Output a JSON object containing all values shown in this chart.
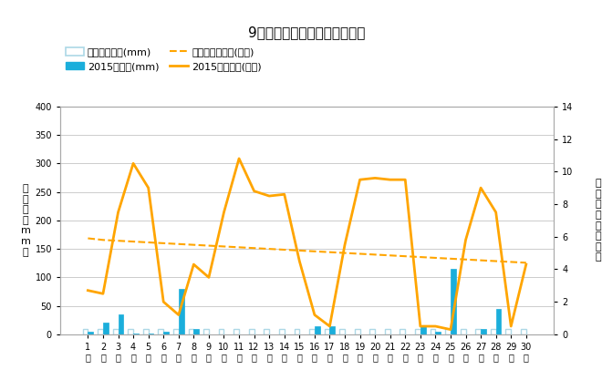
{
  "title": "9月降水量・日照時間（日別）",
  "days": [
    1,
    2,
    3,
    4,
    5,
    6,
    7,
    8,
    9,
    10,
    11,
    12,
    13,
    14,
    15,
    16,
    17,
    18,
    19,
    20,
    21,
    22,
    23,
    24,
    25,
    26,
    27,
    28,
    29,
    30
  ],
  "precip_avg": [
    10,
    10,
    10,
    10,
    10,
    10,
    10,
    10,
    10,
    10,
    10,
    10,
    10,
    10,
    10,
    10,
    10,
    10,
    10,
    10,
    10,
    10,
    10,
    10,
    10,
    10,
    10,
    10,
    10,
    10
  ],
  "precip_2015": [
    5,
    20,
    35,
    2,
    2,
    5,
    80,
    10,
    0,
    0,
    0,
    0,
    0,
    0,
    0,
    15,
    15,
    0,
    0,
    0,
    0,
    0,
    15,
    5,
    115,
    0,
    10,
    45,
    0,
    0
  ],
  "sunshine_avg": [
    5.9,
    5.8,
    5.75,
    5.7,
    5.65,
    5.6,
    5.55,
    5.5,
    5.45,
    5.4,
    5.35,
    5.3,
    5.25,
    5.2,
    5.15,
    5.1,
    5.05,
    5.0,
    4.95,
    4.9,
    4.85,
    4.8,
    4.75,
    4.7,
    4.65,
    4.6,
    4.55,
    4.5,
    4.45,
    4.4
  ],
  "sunshine_2015": [
    2.7,
    2.5,
    7.5,
    10.5,
    9.0,
    2.0,
    1.2,
    4.3,
    3.5,
    7.5,
    10.8,
    8.8,
    8.5,
    8.6,
    4.5,
    1.2,
    0.5,
    5.5,
    9.5,
    9.6,
    9.5,
    9.5,
    0.5,
    0.5,
    0.3,
    5.8,
    9.0,
    7.5,
    0.5,
    4.3
  ],
  "precip_avg_color": "#add8e6",
  "precip_2015_color": "#1BAEDB",
  "sunshine_avg_color": "#FFA500",
  "sunshine_2015_color": "#FFA500",
  "ylabel_left": "降\n水\n量\n（\nm\nm\n）",
  "ylabel_right": "日\n照\n時\n間\n（\n時\n間\n）",
  "legend_labels": [
    "降水量平年値(mm)",
    "2015降水量(mm)",
    "日照時間平年値(時間)",
    "2015日照時間(時間)"
  ],
  "ylim_left": [
    0,
    400
  ],
  "ylim_right": [
    0,
    14
  ],
  "yticks_left": [
    0,
    50,
    100,
    150,
    200,
    250,
    300,
    350,
    400
  ],
  "yticks_right": [
    0,
    2,
    4,
    6,
    8,
    10,
    12,
    14
  ],
  "background_color": "#ffffff",
  "grid_color": "#cccccc",
  "title_fontsize": 11,
  "legend_fontsize": 8,
  "axis_fontsize": 8
}
